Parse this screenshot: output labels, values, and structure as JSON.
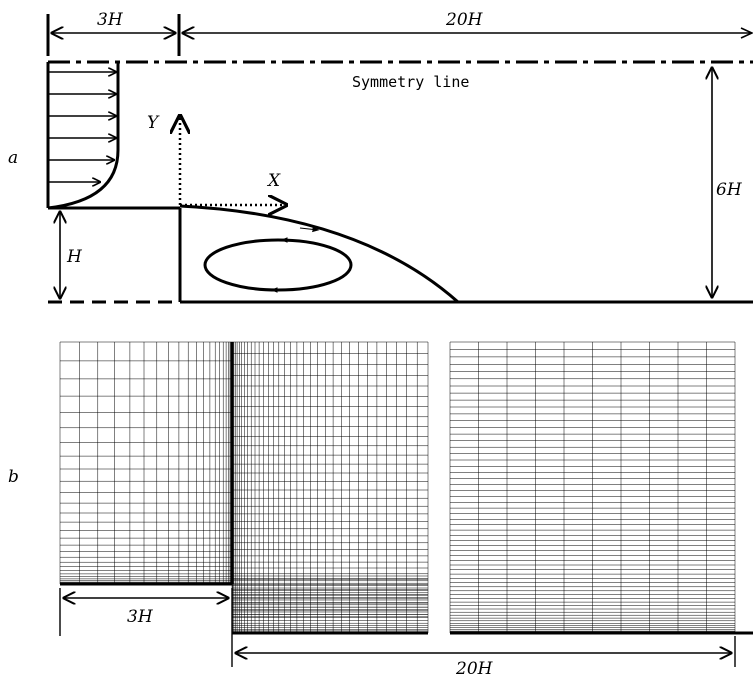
{
  "panel_a": {
    "label": "a",
    "dim_step_length": "3H",
    "dim_domain_length": "20H",
    "dim_height": "6H",
    "dim_step_height": "H",
    "symmetry_label": "Symmetry line",
    "axis_x": "X",
    "axis_y": "Y"
  },
  "panel_b": {
    "label": "b",
    "dim_step_length": "3H",
    "dim_domain_length": "20H"
  },
  "colors": {
    "ink": "#000000",
    "background": "#ffffff"
  }
}
